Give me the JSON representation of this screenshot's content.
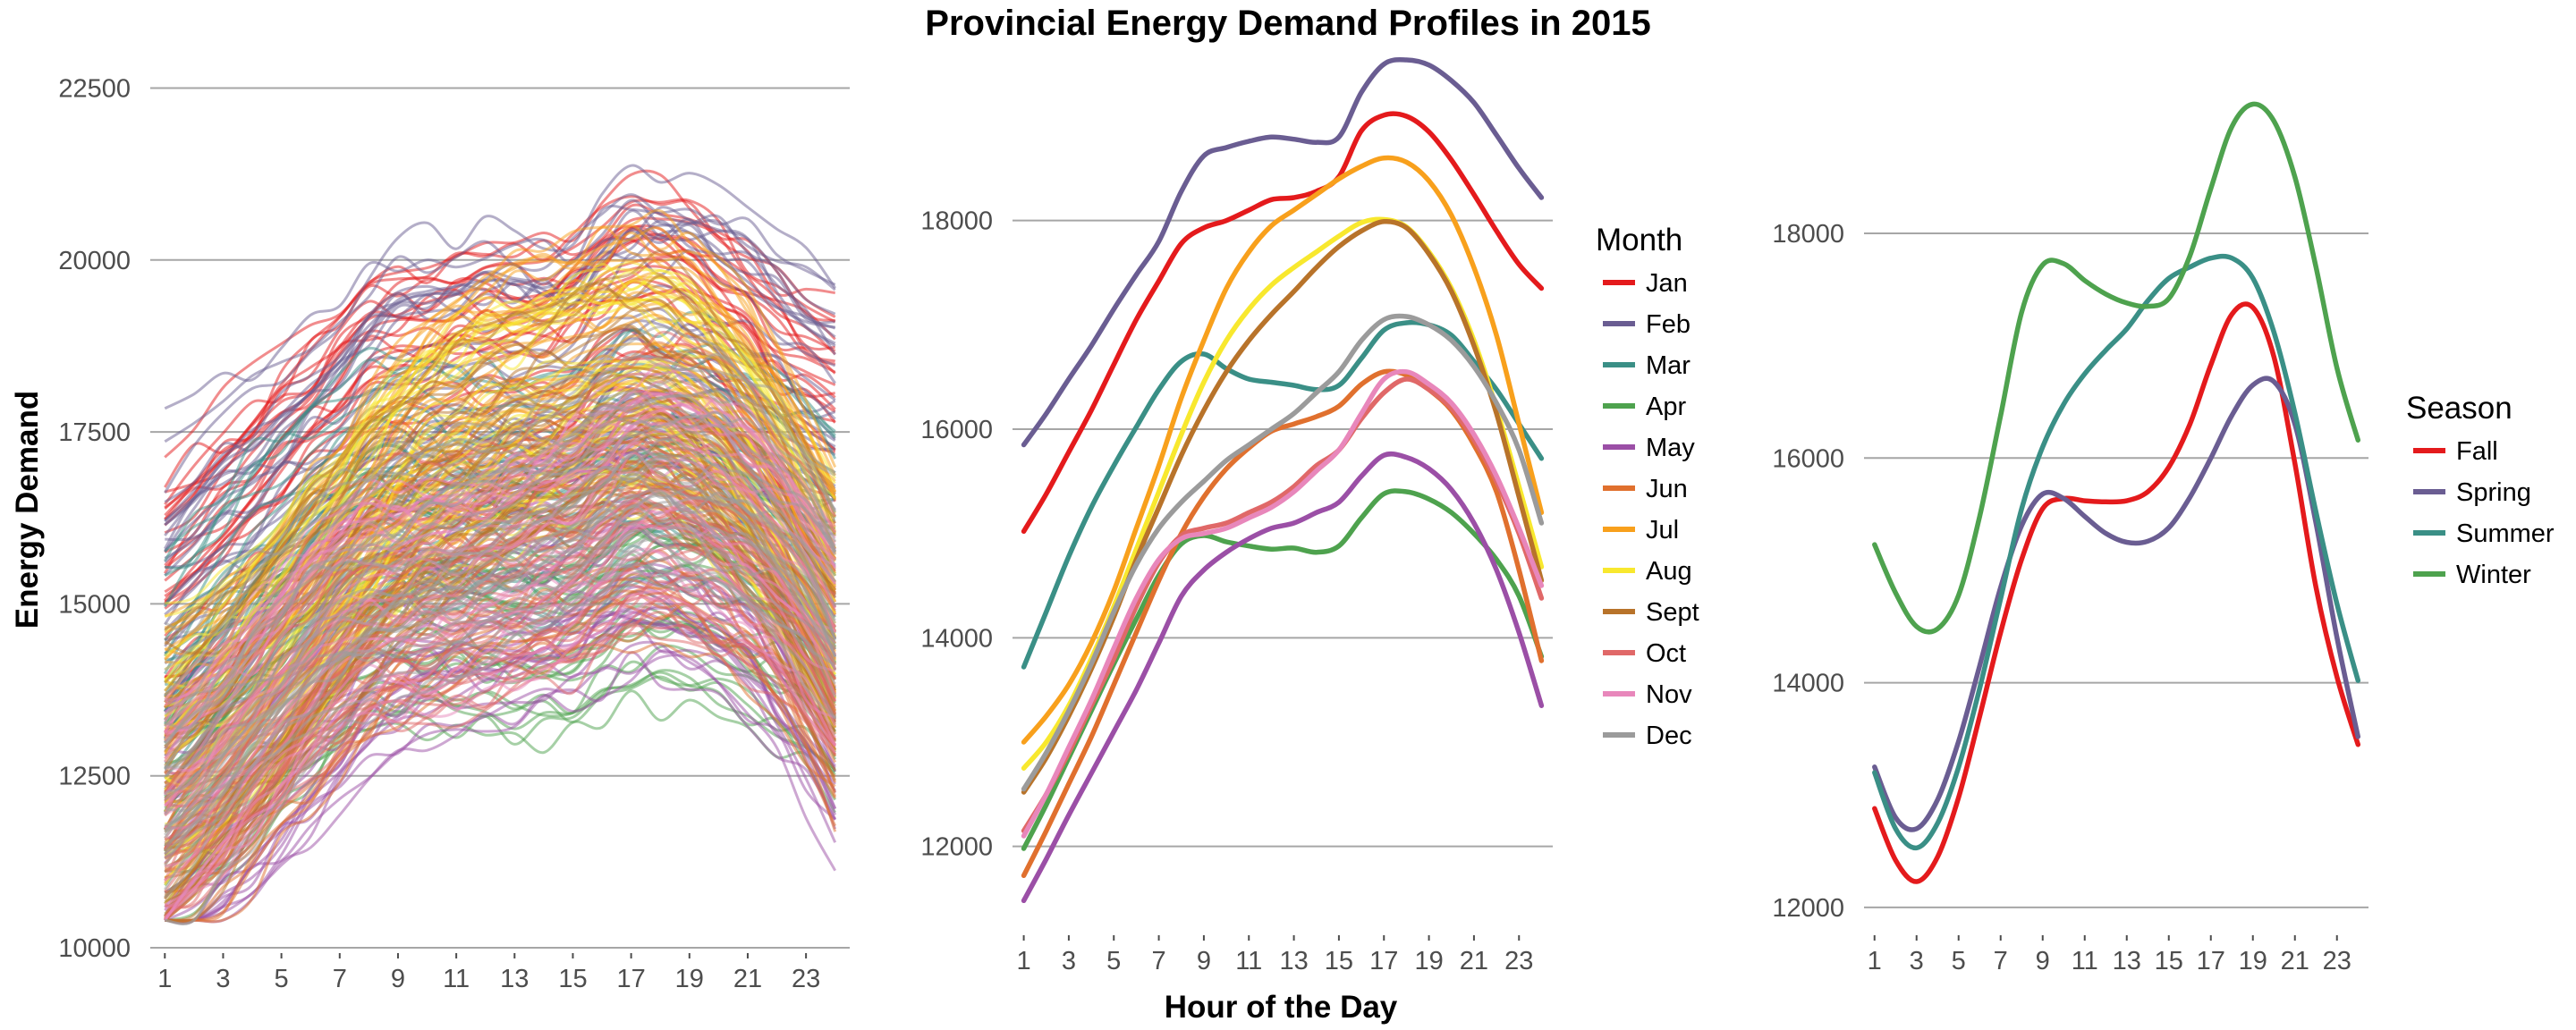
{
  "title": "Provincial Energy Demand Profiles in 2015",
  "xlabel": "Hour of the Day",
  "ylabel": "Energy Demand",
  "chart_data": [
    {
      "type": "line",
      "panel": "daily",
      "x_ticks": [
        "1",
        "3",
        "5",
        "7",
        "9",
        "11",
        "13",
        "15",
        "17",
        "19",
        "21",
        "23"
      ],
      "xlim": [
        0.5,
        24.5
      ],
      "ylim": [
        10000,
        23000
      ],
      "y_ticks": [
        "10000",
        "12500",
        "15000",
        "17500",
        "20000",
        "22500"
      ],
      "grid": "horizontal",
      "description_series": "365 daily hourly-demand lines, one per day of 2015, colored by month",
      "month_colors": [
        "#e41a1c",
        "#6a5d92",
        "#3a8f86",
        "#4ea24e",
        "#9b4fa6",
        "#e0702e",
        "#f8a01c",
        "#f8e82e",
        "#b8732a",
        "#e06868",
        "#e887bb",
        "#9b9b9b"
      ]
    },
    {
      "type": "line",
      "panel": "monthly",
      "x": [
        1,
        2,
        3,
        4,
        5,
        6,
        7,
        8,
        9,
        10,
        11,
        12,
        13,
        14,
        15,
        16,
        17,
        18,
        19,
        20,
        21,
        22,
        23,
        24
      ],
      "x_ticks": [
        "1",
        "3",
        "5",
        "7",
        "9",
        "11",
        "13",
        "15",
        "17",
        "19",
        "21",
        "23"
      ],
      "xlim": [
        0.5,
        24.5
      ],
      "ylim": [
        11200,
        19600
      ],
      "y_ticks": [
        "12000",
        "14000",
        "16000",
        "18000"
      ],
      "grid": "horizontal",
      "legend_title": "Month",
      "legend_position": "right",
      "series": [
        {
          "name": "Jan",
          "color": "#e41a1c",
          "values": [
            15020,
            15380,
            15780,
            16180,
            16620,
            17050,
            17420,
            17780,
            17930,
            18000,
            18100,
            18200,
            18220,
            18280,
            18420,
            18860,
            19010,
            19000,
            18850,
            18580,
            18250,
            17900,
            17580,
            17350
          ]
        },
        {
          "name": "Feb",
          "color": "#6a5d92",
          "values": [
            15850,
            16150,
            16480,
            16800,
            17150,
            17480,
            17800,
            18280,
            18620,
            18700,
            18760,
            18800,
            18780,
            18750,
            18800,
            19230,
            19500,
            19540,
            19490,
            19340,
            19130,
            18820,
            18500,
            18220
          ]
        },
        {
          "name": "Mar",
          "color": "#3a8f86",
          "values": [
            13720,
            14250,
            14780,
            15250,
            15650,
            16020,
            16380,
            16650,
            16720,
            16580,
            16480,
            16450,
            16420,
            16380,
            16420,
            16680,
            16950,
            17020,
            17000,
            16900,
            16650,
            16380,
            16050,
            15720
          ]
        },
        {
          "name": "Apr",
          "color": "#4ea24e",
          "values": [
            11980,
            12400,
            12850,
            13300,
            13750,
            14180,
            14600,
            14900,
            14980,
            14920,
            14880,
            14850,
            14860,
            14820,
            14880,
            15150,
            15380,
            15400,
            15330,
            15200,
            15000,
            14750,
            14400,
            13820
          ]
        },
        {
          "name": "May",
          "color": "#9b4fa6",
          "values": [
            11480,
            11880,
            12300,
            12700,
            13100,
            13500,
            13950,
            14400,
            14650,
            14820,
            14950,
            15050,
            15100,
            15200,
            15300,
            15550,
            15750,
            15730,
            15620,
            15420,
            15100,
            14650,
            14050,
            13350
          ]
        },
        {
          "name": "Jun",
          "color": "#e0702e",
          "values": [
            11720,
            12150,
            12600,
            13050,
            13550,
            14050,
            14550,
            15000,
            15350,
            15620,
            15820,
            15980,
            16050,
            16120,
            16220,
            16430,
            16550,
            16520,
            16380,
            16180,
            15850,
            15400,
            14650,
            13780
          ]
        },
        {
          "name": "Jul",
          "color": "#f8a01c",
          "values": [
            13000,
            13250,
            13550,
            13950,
            14450,
            15050,
            15650,
            16300,
            16850,
            17350,
            17700,
            17950,
            18100,
            18250,
            18400,
            18520,
            18600,
            18560,
            18380,
            18050,
            17550,
            16900,
            16050,
            15200
          ]
        },
        {
          "name": "Aug",
          "color": "#f8e82e",
          "values": [
            12750,
            13000,
            13350,
            13800,
            14300,
            14850,
            15400,
            15950,
            16450,
            16850,
            17150,
            17380,
            17550,
            17700,
            17850,
            17980,
            18010,
            17940,
            17700,
            17350,
            16850,
            16200,
            15450,
            14680
          ]
        },
        {
          "name": "Sept",
          "color": "#b8732a",
          "values": [
            12520,
            12850,
            13250,
            13700,
            14200,
            14750,
            15250,
            15750,
            16180,
            16550,
            16850,
            17100,
            17320,
            17550,
            17750,
            17900,
            17990,
            17930,
            17680,
            17320,
            16800,
            16150,
            15350,
            14550
          ]
        },
        {
          "name": "Oct",
          "color": "#e06868",
          "values": [
            12150,
            12500,
            12900,
            13350,
            13800,
            14300,
            14720,
            14980,
            15050,
            15100,
            15200,
            15300,
            15450,
            15650,
            15800,
            16100,
            16350,
            16480,
            16380,
            16200,
            15900,
            15500,
            15000,
            14380
          ]
        },
        {
          "name": "Nov",
          "color": "#e887bb",
          "values": [
            12100,
            12500,
            12950,
            13400,
            13900,
            14380,
            14750,
            14950,
            15000,
            15050,
            15150,
            15250,
            15400,
            15600,
            15800,
            16150,
            16480,
            16550,
            16430,
            16250,
            15950,
            15550,
            15050,
            14500
          ]
        },
        {
          "name": "Dec",
          "color": "#9b9b9b",
          "values": [
            12550,
            12900,
            13300,
            13750,
            14250,
            14700,
            15050,
            15300,
            15500,
            15700,
            15850,
            16000,
            16150,
            16350,
            16550,
            16850,
            17050,
            17080,
            17000,
            16850,
            16600,
            16250,
            15800,
            15100
          ]
        }
      ]
    },
    {
      "type": "line",
      "panel": "seasonal",
      "x": [
        1,
        2,
        3,
        4,
        5,
        6,
        7,
        8,
        9,
        10,
        11,
        12,
        13,
        14,
        15,
        16,
        17,
        18,
        19,
        20,
        21,
        22,
        23,
        24
      ],
      "x_ticks": [
        "1",
        "3",
        "5",
        "7",
        "9",
        "11",
        "13",
        "15",
        "17",
        "19",
        "21",
        "23"
      ],
      "xlim": [
        0.5,
        24.5
      ],
      "ylim": [
        11800,
        19600
      ],
      "y_ticks": [
        "12000",
        "14000",
        "16000",
        "18000"
      ],
      "grid": "horizontal",
      "legend_title": "Season",
      "legend_position": "right",
      "series": [
        {
          "name": "Fall",
          "color": "#e41a1c",
          "values": [
            12880,
            12420,
            12230,
            12450,
            12980,
            13700,
            14450,
            15100,
            15550,
            15640,
            15620,
            15610,
            15620,
            15700,
            15920,
            16300,
            16830,
            17280,
            17340,
            16900,
            15950,
            14850,
            14050,
            13450
          ]
        },
        {
          "name": "Spring",
          "color": "#6a5d92",
          "values": [
            13250,
            12800,
            12700,
            12960,
            13480,
            14150,
            14850,
            15400,
            15680,
            15640,
            15480,
            15330,
            15250,
            15260,
            15380,
            15650,
            16000,
            16380,
            16650,
            16680,
            16300,
            15420,
            14400,
            13520
          ]
        },
        {
          "name": "Summer",
          "color": "#3a8f86",
          "values": [
            13200,
            12700,
            12530,
            12750,
            13250,
            13950,
            14750,
            15550,
            16100,
            16480,
            16750,
            16960,
            17150,
            17400,
            17600,
            17700,
            17780,
            17780,
            17600,
            17120,
            16400,
            15520,
            14700,
            14020
          ]
        },
        {
          "name": "Winter",
          "color": "#4ea24e",
          "values": [
            15230,
            14800,
            14500,
            14480,
            14780,
            15480,
            16380,
            17300,
            17720,
            17730,
            17580,
            17460,
            17380,
            17350,
            17420,
            17800,
            18400,
            18950,
            19150,
            19000,
            18500,
            17700,
            16800,
            16160
          ]
        }
      ]
    }
  ]
}
